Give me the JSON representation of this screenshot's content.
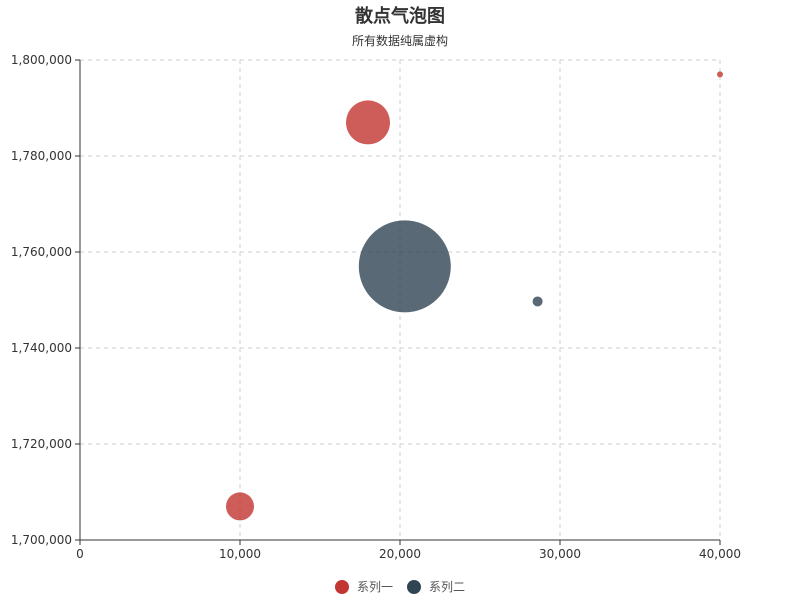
{
  "chart_data": {
    "type": "scatter",
    "title": "散点气泡图",
    "subtitle": "所有数据纯属虚构",
    "xlim": [
      0,
      40000
    ],
    "ylim": [
      1700000,
      1800000
    ],
    "x_ticks": [
      "0",
      "10,000",
      "20,000",
      "30,000",
      "40,000"
    ],
    "y_ticks": [
      "1,700,000",
      "1,720,000",
      "1,740,000",
      "1,760,000",
      "1,780,000",
      "1,800,000"
    ],
    "grid": true,
    "legend_position": "bottom-center",
    "series": [
      {
        "name": "系列一",
        "color": "#c23531",
        "points": [
          {
            "x": 10000,
            "y": 1707000,
            "size": 14
          },
          {
            "x": 18000,
            "y": 1787000,
            "size": 22
          },
          {
            "x": 40000,
            "y": 1797000,
            "size": 3
          }
        ]
      },
      {
        "name": "系列二",
        "color": "#2f4554",
        "points": [
          {
            "x": 20300,
            "y": 1757000,
            "size": 46
          },
          {
            "x": 28600,
            "y": 1749700,
            "size": 5
          }
        ]
      }
    ]
  }
}
